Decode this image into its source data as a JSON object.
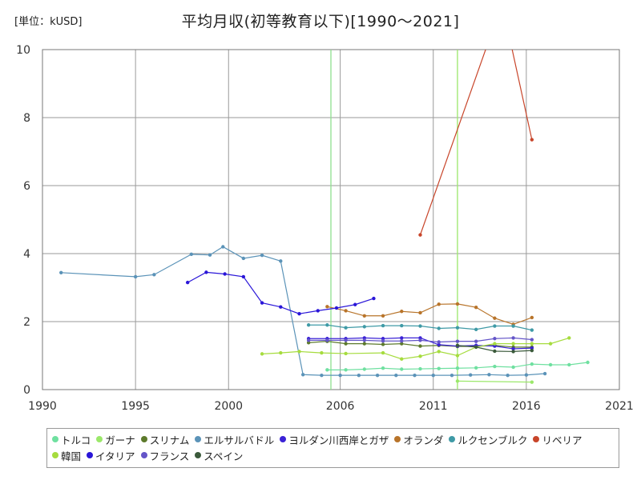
{
  "chart_data": {
    "type": "line",
    "title": "平均月収(初等教育以下)[1990～2021]",
    "unit_label": "[単位：kUSD]",
    "xlim": [
      1990,
      2021
    ],
    "ylim": [
      0,
      10
    ],
    "xticks": [
      1990,
      1995,
      2000,
      2006,
      2011,
      2016,
      2021
    ],
    "yticks": [
      0,
      2,
      4,
      6,
      8,
      10
    ],
    "grid": true,
    "legend_position": "bottom",
    "series": [
      {
        "name": "トルコ",
        "color": "#6fe0a0",
        "points": [
          [
            2005.3,
            0.58
          ],
          [
            2006.3,
            0.58
          ],
          [
            2007.3,
            0.6
          ],
          [
            2008.3,
            0.63
          ],
          [
            2009.3,
            0.6
          ],
          [
            2010.3,
            0.61
          ],
          [
            2011.3,
            0.62
          ],
          [
            2012.3,
            0.63
          ],
          [
            2013.3,
            0.64
          ],
          [
            2014.3,
            0.68
          ],
          [
            2015.3,
            0.66
          ],
          [
            2016.3,
            0.75
          ],
          [
            2017.3,
            0.73
          ],
          [
            2018.3,
            0.73
          ],
          [
            2019.3,
            0.8
          ]
        ]
      },
      {
        "name": "ガーナ",
        "color": "#9be86a",
        "points": [
          [
            2012.3,
            0.25
          ],
          [
            2016.3,
            0.22
          ]
        ]
      },
      {
        "name": "スリナム",
        "color": "#5d7a2c",
        "points": [
          [
            2004.3,
            1.38
          ],
          [
            2005.3,
            1.42
          ],
          [
            2006.3,
            1.35
          ],
          [
            2007.3,
            1.35
          ],
          [
            2008.3,
            1.33
          ],
          [
            2009.3,
            1.35
          ],
          [
            2010.3,
            1.28
          ],
          [
            2011.3,
            1.3
          ],
          [
            2012.3,
            1.27
          ],
          [
            2013.3,
            1.27
          ],
          [
            2014.3,
            1.3
          ],
          [
            2015.3,
            1.25
          ],
          [
            2016.3,
            1.25
          ]
        ]
      },
      {
        "name": "エルサルバドル",
        "color": "#5b93b8",
        "points": [
          [
            1991.0,
            3.44
          ],
          [
            1995.0,
            3.32
          ],
          [
            1996.0,
            3.38
          ],
          [
            1998.0,
            3.98
          ],
          [
            1999.0,
            3.96
          ],
          [
            1999.7,
            4.2
          ],
          [
            2000.8,
            3.86
          ],
          [
            2001.8,
            3.95
          ],
          [
            2002.8,
            3.78
          ],
          [
            2004.0,
            0.44
          ],
          [
            2005.0,
            0.42
          ],
          [
            2006.0,
            0.42
          ],
          [
            2007.0,
            0.42
          ],
          [
            2008.0,
            0.42
          ],
          [
            2009.0,
            0.42
          ],
          [
            2010.0,
            0.42
          ],
          [
            2011.0,
            0.42
          ],
          [
            2012.0,
            0.42
          ],
          [
            2013.0,
            0.43
          ],
          [
            2014.0,
            0.44
          ],
          [
            2015.0,
            0.42
          ],
          [
            2016.0,
            0.43
          ],
          [
            2017.0,
            0.47
          ]
        ]
      },
      {
        "name": "ヨルダン川西岸とガザ",
        "color": "#3b22d6",
        "points": [
          [
            2004.3,
            1.5
          ],
          [
            2005.3,
            1.5
          ],
          [
            2006.3,
            1.5
          ],
          [
            2007.3,
            1.52
          ],
          [
            2008.3,
            1.5
          ],
          [
            2009.3,
            1.52
          ],
          [
            2010.3,
            1.52
          ],
          [
            2011.3,
            1.32
          ],
          [
            2012.3,
            1.28
          ],
          [
            2013.3,
            1.3
          ],
          [
            2014.3,
            1.28
          ],
          [
            2015.3,
            1.2
          ],
          [
            2016.3,
            1.22
          ]
        ]
      },
      {
        "name": "オランダ",
        "color": "#b8742a",
        "points": [
          [
            2005.3,
            2.44
          ],
          [
            2006.3,
            2.32
          ],
          [
            2007.3,
            2.17
          ],
          [
            2008.3,
            2.17
          ],
          [
            2009.3,
            2.3
          ],
          [
            2010.3,
            2.26
          ],
          [
            2011.3,
            2.51
          ],
          [
            2012.3,
            2.52
          ],
          [
            2013.3,
            2.42
          ],
          [
            2014.3,
            2.1
          ],
          [
            2015.3,
            1.92
          ],
          [
            2016.3,
            2.12
          ]
        ]
      },
      {
        "name": "ルクセンブルク",
        "color": "#3f9aa6",
        "points": [
          [
            2004.3,
            1.9
          ],
          [
            2005.3,
            1.9
          ],
          [
            2006.3,
            1.82
          ],
          [
            2007.3,
            1.85
          ],
          [
            2008.3,
            1.88
          ],
          [
            2009.3,
            1.88
          ],
          [
            2010.3,
            1.87
          ],
          [
            2011.3,
            1.8
          ],
          [
            2012.3,
            1.82
          ],
          [
            2013.3,
            1.77
          ],
          [
            2014.3,
            1.87
          ],
          [
            2015.3,
            1.87
          ],
          [
            2016.3,
            1.75
          ]
        ]
      },
      {
        "name": "リベリア",
        "color": "#c8452a",
        "points": [
          [
            2010.3,
            4.55
          ],
          [
            2014.2,
            10.6
          ],
          [
            2015.0,
            10.6
          ],
          [
            2016.3,
            7.35
          ]
        ]
      },
      {
        "name": "韓国",
        "color": "#a6dc3e",
        "points": [
          [
            2001.8,
            1.05
          ],
          [
            2002.8,
            1.08
          ],
          [
            2003.8,
            1.12
          ],
          [
            2005.0,
            1.08
          ],
          [
            2006.3,
            1.06
          ],
          [
            2008.3,
            1.08
          ],
          [
            2009.3,
            0.9
          ],
          [
            2010.3,
            0.98
          ],
          [
            2011.3,
            1.12
          ],
          [
            2012.3,
            1.0
          ],
          [
            2013.3,
            1.25
          ],
          [
            2014.3,
            1.35
          ],
          [
            2015.3,
            1.35
          ],
          [
            2016.3,
            1.35
          ],
          [
            2017.3,
            1.35
          ],
          [
            2018.3,
            1.52
          ]
        ]
      },
      {
        "name": "イタリア",
        "color": "#2a16d8",
        "points": [
          [
            1997.8,
            3.15
          ],
          [
            1998.8,
            3.45
          ],
          [
            1999.8,
            3.4
          ],
          [
            2000.8,
            3.32
          ],
          [
            2001.8,
            2.55
          ],
          [
            2002.8,
            2.43
          ],
          [
            2003.8,
            2.23
          ],
          [
            2004.8,
            2.32
          ],
          [
            2005.8,
            2.4
          ],
          [
            2006.8,
            2.5
          ],
          [
            2007.8,
            2.68
          ]
        ]
      },
      {
        "name": "フランス",
        "color": "#6455c8",
        "points": [
          [
            2004.3,
            1.45
          ],
          [
            2005.3,
            1.45
          ],
          [
            2006.3,
            1.45
          ],
          [
            2007.3,
            1.45
          ],
          [
            2008.3,
            1.43
          ],
          [
            2009.3,
            1.43
          ],
          [
            2010.3,
            1.45
          ],
          [
            2011.3,
            1.4
          ],
          [
            2012.3,
            1.42
          ],
          [
            2013.3,
            1.42
          ],
          [
            2014.3,
            1.5
          ],
          [
            2015.3,
            1.52
          ],
          [
            2016.3,
            1.47
          ]
        ]
      },
      {
        "name": "スペイン",
        "color": "#3b5a3b",
        "points": [
          [
            2012.3,
            1.3
          ],
          [
            2013.3,
            1.25
          ],
          [
            2014.3,
            1.13
          ],
          [
            2015.3,
            1.12
          ],
          [
            2016.3,
            1.15
          ]
        ]
      }
    ],
    "vertical_lines": [
      {
        "x": 2005.5,
        "color": "#8fe08f"
      },
      {
        "x": 2012.3,
        "color": "#9be86a"
      }
    ]
  }
}
